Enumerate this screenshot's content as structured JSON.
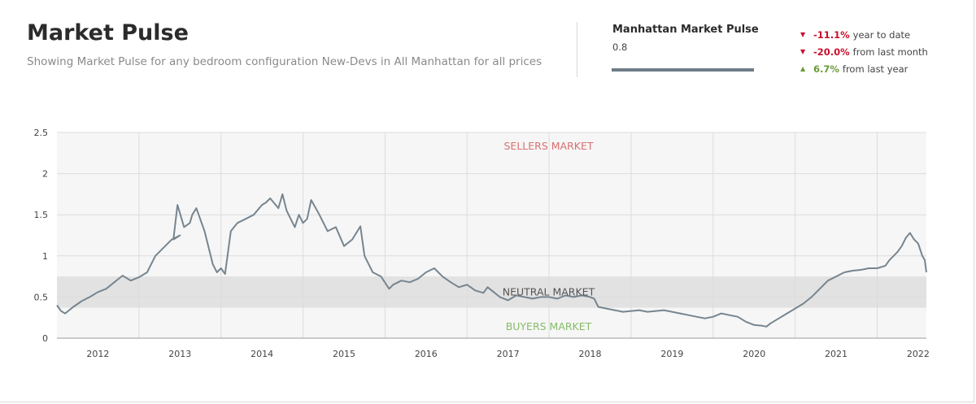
{
  "header": {
    "title": "Market Pulse",
    "subtitle": "Showing Market Pulse for any bedroom configuration New-Devs in All Manhattan for all prices"
  },
  "summary": {
    "name": "Manhattan Market Pulse",
    "value": "0.8",
    "stats": [
      {
        "direction": "down",
        "value": "-11.1%",
        "label": "year to date"
      },
      {
        "direction": "down",
        "value": "-20.0%",
        "label": "from last month"
      },
      {
        "direction": "up",
        "value": "6.7%",
        "label": "from last year"
      }
    ]
  },
  "colors": {
    "line": "#77858f",
    "sellers": "#d97070",
    "buyers": "#86bc6a",
    "neutral_text": "#555555",
    "neutral_band": "#e2e2e2",
    "plot_bg": "#f6f6f6",
    "down": "#c8102e",
    "up": "#6a9a3a"
  },
  "chart_data": {
    "type": "line",
    "title": "",
    "xlabel": "",
    "ylabel": "",
    "ylim": [
      0,
      2.5
    ],
    "xlim": [
      2011.5,
      2022.1
    ],
    "yticks": [
      "0",
      "0.5",
      "1",
      "1.5",
      "2",
      "2.5"
    ],
    "xticks": [
      "2012",
      "2013",
      "2014",
      "2015",
      "2016",
      "2017",
      "2018",
      "2019",
      "2020",
      "2021",
      "2022"
    ],
    "grid": true,
    "neutral_band": [
      0.37,
      0.75
    ],
    "zones": {
      "sellers": "SELLERS MARKET",
      "neutral": "NEUTRAL MARKET",
      "buyers": "BUYERS MARKET"
    },
    "series": [
      {
        "x": [
          2011.5,
          2011.55,
          2011.6,
          2011.7,
          2011.8,
          2011.9,
          2012.0,
          2012.1,
          2012.2,
          2012.25,
          2012.3,
          2012.4,
          2012.5,
          2012.6,
          2012.7,
          2012.8,
          2012.9,
          2013.0,
          2012.92,
          2012.97,
          2013.05,
          2013.12,
          2013.15,
          2013.2,
          2013.3,
          2013.4,
          2013.45,
          2013.5,
          2013.55,
          2013.62,
          2013.7,
          2013.8,
          2013.9,
          2014.0,
          2014.05,
          2014.1,
          2014.2,
          2014.25,
          2014.3,
          2014.35,
          2014.4,
          2014.45,
          2014.5,
          2014.55,
          2014.6,
          2014.7,
          2014.8,
          2014.9,
          2015.0,
          2015.1,
          2015.15,
          2015.2,
          2015.25,
          2015.35,
          2015.45,
          2015.55,
          2015.6,
          2015.7,
          2015.8,
          2015.9,
          2016.0,
          2016.1,
          2016.2,
          2016.3,
          2016.4,
          2016.5,
          2016.6,
          2016.7,
          2016.75,
          2016.8,
          2016.9,
          2017.0,
          2017.1,
          2017.2,
          2017.3,
          2017.4,
          2017.5,
          2017.6,
          2017.7,
          2017.8,
          2017.9,
          2018.0,
          2018.05,
          2018.1,
          2018.2,
          2018.3,
          2018.4,
          2018.5,
          2018.6,
          2018.7,
          2018.8,
          2018.9,
          2019.0,
          2019.1,
          2019.2,
          2019.3,
          2019.4,
          2019.5,
          2019.6,
          2019.7,
          2019.8,
          2019.9,
          2020.0,
          2020.1,
          2020.15,
          2020.2,
          2020.3,
          2020.4,
          2020.5,
          2020.6,
          2020.7,
          2020.8,
          2020.9,
          2021.0,
          2021.1,
          2021.2,
          2021.3,
          2021.4,
          2021.5,
          2021.6,
          2021.65,
          2021.7,
          2021.75,
          2021.8,
          2021.85,
          2021.9,
          2021.95,
          2022.0,
          2022.05,
          2022.08,
          2022.1
        ],
        "values": [
          0.4,
          0.33,
          0.3,
          0.38,
          0.45,
          0.5,
          0.56,
          0.6,
          0.68,
          0.72,
          0.76,
          0.7,
          0.74,
          0.8,
          1.0,
          1.1,
          1.2,
          1.25,
          1.2,
          1.62,
          1.35,
          1.4,
          1.5,
          1.58,
          1.3,
          0.9,
          0.8,
          0.85,
          0.78,
          1.3,
          1.4,
          1.45,
          1.5,
          1.62,
          1.65,
          1.7,
          1.58,
          1.75,
          1.55,
          1.45,
          1.35,
          1.5,
          1.4,
          1.45,
          1.68,
          1.5,
          1.3,
          1.35,
          1.12,
          1.2,
          1.28,
          1.36,
          1.0,
          0.8,
          0.75,
          0.6,
          0.65,
          0.7,
          0.68,
          0.72,
          0.8,
          0.85,
          0.75,
          0.68,
          0.62,
          0.65,
          0.58,
          0.55,
          0.62,
          0.58,
          0.5,
          0.46,
          0.52,
          0.5,
          0.48,
          0.5,
          0.5,
          0.48,
          0.52,
          0.5,
          0.52,
          0.5,
          0.48,
          0.38,
          0.36,
          0.34,
          0.32,
          0.33,
          0.34,
          0.32,
          0.33,
          0.34,
          0.32,
          0.3,
          0.28,
          0.26,
          0.24,
          0.26,
          0.3,
          0.28,
          0.26,
          0.2,
          0.16,
          0.15,
          0.14,
          0.18,
          0.24,
          0.3,
          0.36,
          0.42,
          0.5,
          0.6,
          0.7,
          0.75,
          0.8,
          0.82,
          0.83,
          0.85,
          0.85,
          0.88,
          0.95,
          1.0,
          1.05,
          1.12,
          1.22,
          1.28,
          1.2,
          1.15,
          1.0,
          0.95,
          0.8
        ]
      }
    ]
  }
}
